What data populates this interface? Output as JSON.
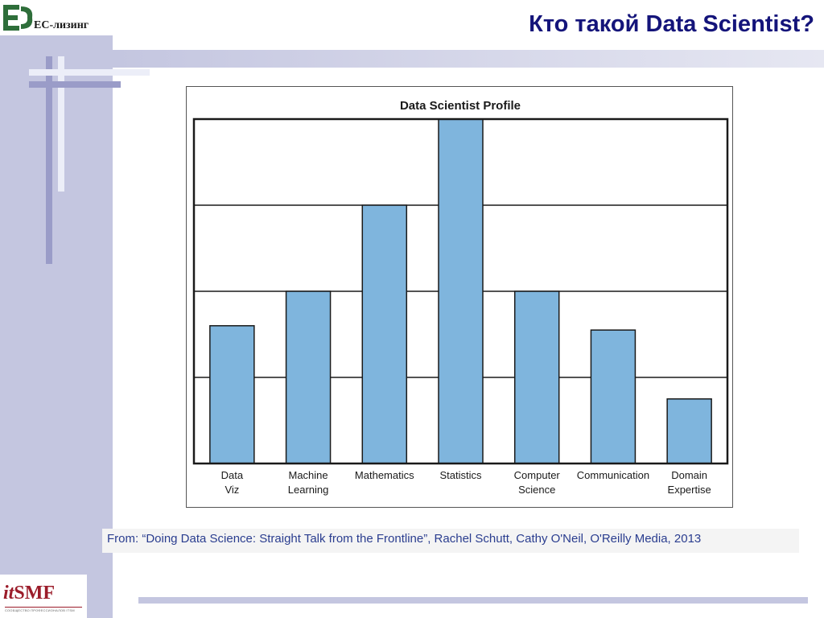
{
  "header": {
    "title": "Кто такой Data Scientist?",
    "logo_text": "ЕС-лизинг",
    "logo_icon": "ec-leasing-logo-icon"
  },
  "chart_data": {
    "type": "bar",
    "title": "Data Scientist Profile",
    "categories": [
      "Data\nViz",
      "Machine\nLearning",
      "Mathematics",
      "Statistics",
      "Computer\nScience",
      "Communication",
      "Domain\nExpertise"
    ],
    "values": [
      1.6,
      2.0,
      3.0,
      4.0,
      2.0,
      1.55,
      0.75
    ],
    "ylim": [
      0,
      4
    ],
    "grid": true,
    "bar_color": "#7fb5dd",
    "xlabel": "",
    "ylabel": ""
  },
  "citation": "From: “Doing Data Science: Straight Talk from the Frontline”, Rachel Schutt, Cathy O'Neil, O'Reilly Media, 2013",
  "footer": {
    "itsmf_it": "it",
    "itsmf_smf": "SMF",
    "itsmf_subtitle": "СООБЩЕСТВО ПРОФЕССИОНАЛОВ ITSM"
  },
  "colors": {
    "title": "#14147a",
    "sidebar": "#c4c6e0",
    "citation_text": "#2a3d8f"
  }
}
